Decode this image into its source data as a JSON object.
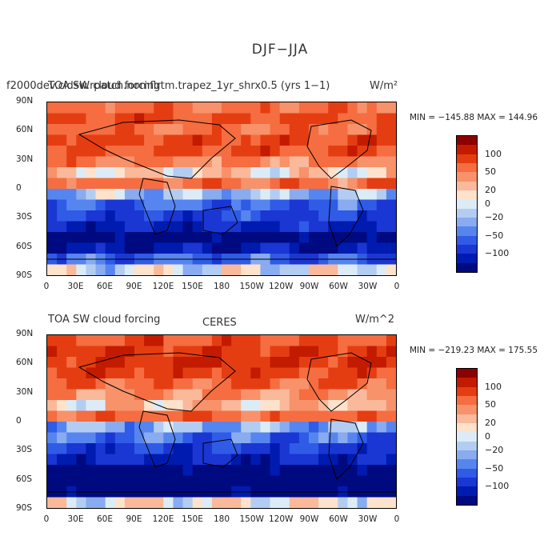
{
  "page": {
    "title": "DJF−JJA"
  },
  "chart_data": [
    {
      "type": "heatmap",
      "title_left": "f2000dev.cldsw.rpatch.nomflrtm.trapez_1yr_shrx0.5 (yrs 1−1)",
      "title_overlay": "TOA SW cloud forcing",
      "units": "W/m²",
      "stats": "MIN = −145.88  MAX = 144.96",
      "min": -145.88,
      "max": 144.96,
      "xticks": [
        "0",
        "30E",
        "60E",
        "90E",
        "120E",
        "150E",
        "180",
        "150W",
        "120W",
        "90W",
        "60W",
        "30W",
        "0"
      ],
      "yticks": [
        "90N",
        "60N",
        "30N",
        "0",
        "30S",
        "60S",
        "90S"
      ],
      "colorbar_labels": [
        "100",
        "50",
        "20",
        "0",
        "−20",
        "−50",
        "−100"
      ],
      "colorbar_colors": [
        "#8b0000",
        "#c21b00",
        "#e53d12",
        "#f56d40",
        "#f7926b",
        "#f9b99a",
        "#fde2cc",
        "#dcecf7",
        "#b3cdf2",
        "#89abef",
        "#5785f0",
        "#2f5be6",
        "#1a36d3",
        "#001bb0",
        "#000a80"
      ],
      "zonal_band_values": [
        60,
        80,
        60,
        85,
        75,
        50,
        20,
        60,
        -10,
        -40,
        -55,
        -75,
        -115,
        -90,
        -40,
        5
      ]
    },
    {
      "type": "heatmap",
      "title_left": "TOA SW cloud forcing",
      "title_center": "CERES",
      "units": "W/m^2",
      "stats": "MIN = −219.23  MAX = 175.55",
      "min": -219.23,
      "max": 175.55,
      "xticks": [
        "0",
        "30E",
        "60E",
        "90E",
        "120E",
        "150E",
        "180",
        "150W",
        "120W",
        "90W",
        "60W",
        "30W",
        "0"
      ],
      "yticks": [
        "90N",
        "60N",
        "30N",
        "0",
        "30S",
        "60S",
        "90S"
      ],
      "colorbar_labels": [
        "100",
        "50",
        "20",
        "0",
        "−20",
        "−50",
        "−100"
      ],
      "colorbar_colors": [
        "#8b0000",
        "#c21b00",
        "#e53d12",
        "#f56d40",
        "#f7926b",
        "#f9b99a",
        "#fde2cc",
        "#dcecf7",
        "#b3cdf2",
        "#89abef",
        "#5785f0",
        "#2f5be6",
        "#1a36d3",
        "#001bb0",
        "#000a80"
      ],
      "zonal_band_values": [
        80,
        90,
        95,
        85,
        70,
        45,
        25,
        65,
        -15,
        -35,
        -60,
        -80,
        -125,
        -150,
        -115,
        12
      ]
    }
  ]
}
